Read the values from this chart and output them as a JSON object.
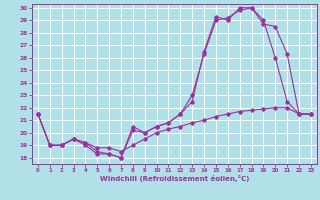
{
  "xlabel": "Windchill (Refroidissement éolien,°C)",
  "background_color": "#b2e0e8",
  "grid_color": "#ffffff",
  "line_color": "#993399",
  "xlim": [
    -0.5,
    23.5
  ],
  "ylim": [
    17.5,
    30.3
  ],
  "yticks": [
    18,
    19,
    20,
    21,
    22,
    23,
    24,
    25,
    26,
    27,
    28,
    29,
    30
  ],
  "xticks": [
    0,
    1,
    2,
    3,
    4,
    5,
    6,
    7,
    8,
    9,
    10,
    11,
    12,
    13,
    14,
    15,
    16,
    17,
    18,
    19,
    20,
    21,
    22,
    23
  ],
  "hours": [
    0,
    1,
    2,
    3,
    4,
    5,
    6,
    7,
    8,
    9,
    10,
    11,
    12,
    13,
    14,
    15,
    16,
    17,
    18,
    19,
    20,
    21,
    22,
    23
  ],
  "line1": [
    21.5,
    19.0,
    19.0,
    19.5,
    19.0,
    18.3,
    18.3,
    18.0,
    20.5,
    20.0,
    20.5,
    20.8,
    21.5,
    22.5,
    26.5,
    29.3,
    29.0,
    30.0,
    30.0,
    29.0,
    26.0,
    22.5,
    21.5,
    21.5
  ],
  "line2": [
    21.5,
    19.0,
    19.0,
    19.5,
    19.2,
    18.5,
    18.3,
    18.0,
    20.2,
    20.0,
    20.5,
    20.8,
    21.5,
    23.0,
    26.3,
    29.0,
    29.2,
    29.8,
    30.0,
    28.7,
    28.5,
    26.3,
    21.5,
    21.5
  ],
  "line3": [
    21.5,
    19.0,
    19.0,
    19.5,
    19.2,
    18.8,
    18.8,
    18.5,
    19.0,
    19.5,
    20.0,
    20.3,
    20.5,
    20.8,
    21.0,
    21.3,
    21.5,
    21.7,
    21.8,
    21.9,
    22.0,
    22.0,
    21.5,
    21.5
  ]
}
